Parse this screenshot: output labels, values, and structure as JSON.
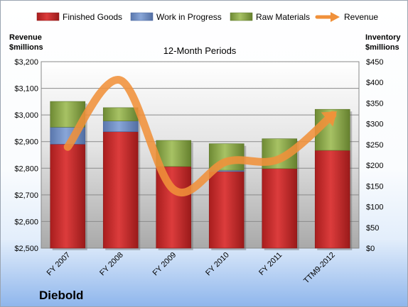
{
  "chart_data": {
    "type": "bar",
    "subtype": "stacked bar with line overlay",
    "title": "12-Month Periods",
    "company": "Diebold",
    "categories": [
      "FY 2007",
      "FY 2008",
      "FY 2009",
      "FY 2010",
      "FY 2011",
      "TTM9-2012"
    ],
    "left_axis": {
      "label_line1": "Revenue",
      "label_line2": "$millions",
      "range": [
        2500,
        3200
      ],
      "ticks": [
        "$2,500",
        "$2,600",
        "$2,700",
        "$2,800",
        "$2,900",
        "$3,000",
        "$3,100",
        "$3,200"
      ]
    },
    "right_axis": {
      "label_line1": "Inventory",
      "label_line2": "$millions",
      "range": [
        0,
        450
      ],
      "ticks": [
        "$0",
        "$50",
        "$100",
        "$150",
        "$200",
        "$250",
        "$300",
        "$350",
        "$400",
        "$450"
      ]
    },
    "grid": true,
    "legend_position": "top",
    "series": [
      {
        "name": "Finished Goods",
        "axis": "right",
        "color": "#cc2a2a",
        "values": [
          251,
          281,
          197,
          185,
          192,
          236
        ]
      },
      {
        "name": "Work in Progress",
        "axis": "right",
        "color": "#6f8fc8",
        "values": [
          41,
          26,
          0,
          3,
          0,
          0
        ]
      },
      {
        "name": "Raw Materials",
        "axis": "right",
        "color": "#94b050",
        "values": [
          62,
          32,
          63,
          64,
          72,
          99
        ]
      },
      {
        "name": "Revenue",
        "axis": "left",
        "type": "line",
        "color": "#f0913a",
        "values": [
          2880,
          3130,
          2720,
          2825,
          2835,
          3000
        ]
      }
    ]
  }
}
